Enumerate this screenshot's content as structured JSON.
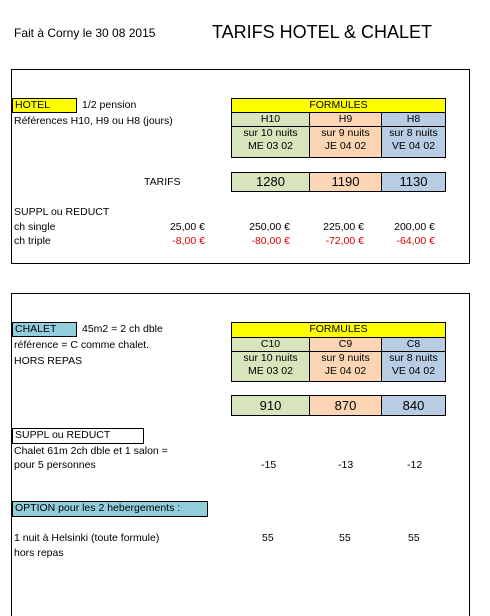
{
  "header": {
    "date": "Fait à Corny le 30 08 2015",
    "title": "TARIFS HOTEL & CHALET"
  },
  "hotel": {
    "label": "HOTEL",
    "board": "1/2 pension",
    "references": "Références  H10, H9 ou H8    (jours)",
    "formules_label": "FORMULES",
    "formulas": [
      {
        "code": "H10",
        "nights": "sur 10 nuits",
        "day": "ME 03 02",
        "price": 1280
      },
      {
        "code": "H9",
        "nights": "sur 9 nuits",
        "day": "JE 04 02",
        "price": 1190
      },
      {
        "code": "H8",
        "nights": "sur 8 nuits",
        "day": "VE 04 02",
        "price": 1130
      }
    ],
    "tarifs_label": "TARIFS",
    "suppl_label": "SUPPL  ou REDUCT",
    "suppl_rows": [
      {
        "label": "ch single",
        "values": [
          "25,00 €",
          "250,00 €",
          "225,00 €",
          "200,00 €"
        ]
      },
      {
        "label": "ch triple",
        "values": [
          "-8,00 €",
          "-80,00 €",
          "-72,00 €",
          "-64,00 €"
        ]
      }
    ]
  },
  "chalet": {
    "label": "CHALET",
    "size": "45m2 = 2 ch dble",
    "reference": "référence = C comme chalet.",
    "meals": "HORS REPAS",
    "formules_label": "FORMULES",
    "formulas": [
      {
        "code": "C10",
        "nights": "sur 10 nuits",
        "day": "ME 03 02",
        "price": 910
      },
      {
        "code": "C9",
        "nights": "sur 9 nuits",
        "day": "JE 04 02",
        "price": 870
      },
      {
        "code": "C8",
        "nights": "sur 8 nuits",
        "day": "VE 04 02",
        "price": 840
      }
    ],
    "suppl_label": "SUPPL  ou REDUCT",
    "suppl_desc": [
      "Chalet 61m 2ch dble et 1 salon =",
      "pour 5 personnes"
    ],
    "suppl_values": [
      -15,
      -13,
      -12
    ]
  },
  "option": {
    "label": "OPTION pour les 2 hebergements  :",
    "desc": [
      "1 nuit à  Helsinki (toute formule)",
      "hors repas"
    ],
    "values": [
      55,
      55,
      55
    ]
  }
}
